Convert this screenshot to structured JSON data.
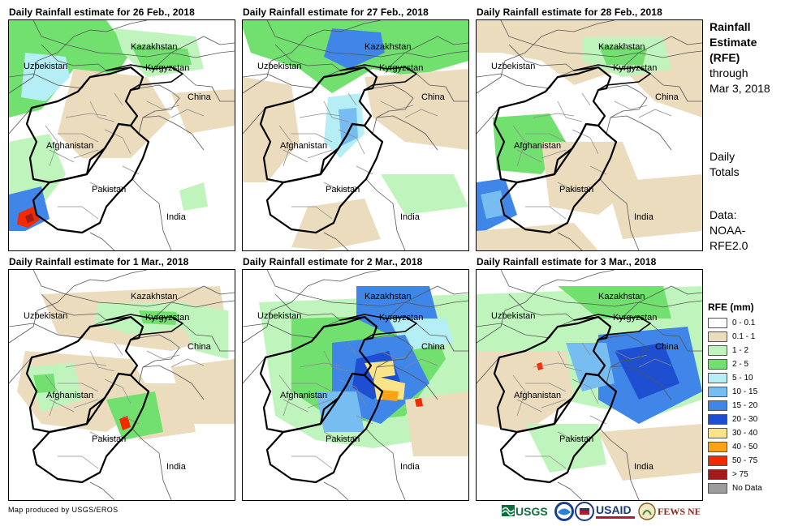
{
  "panels": [
    {
      "title": "Daily Rainfall estimate for 26 Feb., 2018",
      "rain": "p1"
    },
    {
      "title": "Daily Rainfall estimate for 27 Feb., 2018",
      "rain": "p2"
    },
    {
      "title": "Daily Rainfall estimate for 28 Feb., 2018",
      "rain": "p3"
    },
    {
      "title": "Daily Rainfall estimate for 1 Mar., 2018",
      "rain": "p4"
    },
    {
      "title": "Daily Rainfall estimate for 2 Mar., 2018",
      "rain": "p5"
    },
    {
      "title": "Daily Rainfall estimate for 3 Mar., 2018",
      "rain": "p6"
    }
  ],
  "country_labels": {
    "kazakhstan": "Kazakhstan",
    "kyrgyzstan": "Kyrgyzstan",
    "uzbekistan": "Uzbekistan",
    "china": "China",
    "afghanistan": "Afghanistan",
    "pakistan": "Pakistan",
    "india": "India"
  },
  "side": {
    "title_bold": [
      "Rainfall",
      "Estimate",
      "(RFE)"
    ],
    "title_normal": [
      "through",
      "Mar 3, 2018"
    ],
    "daily": [
      "Daily",
      "Totals"
    ],
    "data": [
      "Data:",
      "NOAA-",
      "RFE2.0"
    ]
  },
  "legend": {
    "title": "RFE (mm)",
    "items": [
      {
        "label": "0 - 0.1",
        "color": "#ffffff"
      },
      {
        "label": "0.1 - 1",
        "color": "#ecdcbe"
      },
      {
        "label": "1 - 2",
        "color": "#bff5bd"
      },
      {
        "label": "2 - 5",
        "color": "#72e06f"
      },
      {
        "label": "5 - 10",
        "color": "#b5eef5"
      },
      {
        "label": "10 - 15",
        "color": "#77bdf2"
      },
      {
        "label": "15 - 20",
        "color": "#3f86e8"
      },
      {
        "label": "20 - 30",
        "color": "#1d4fd0"
      },
      {
        "label": "30 - 40",
        "color": "#fbe38a"
      },
      {
        "label": "40 - 50",
        "color": "#fba316"
      },
      {
        "label": "50 - 75",
        "color": "#f22a00"
      },
      {
        "label": "> 75",
        "color": "#a31a1a"
      },
      {
        "label": "No Data",
        "color": "#9c9c9c"
      }
    ]
  },
  "credit": "Map produced by USGS/EROS",
  "logos": {
    "usgs": "USGS",
    "usaid": "USAID",
    "fewsnet": "FEWS NET"
  }
}
